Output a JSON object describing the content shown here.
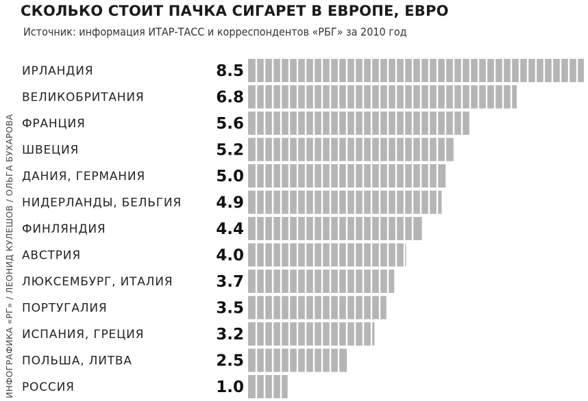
{
  "title": "СКОЛЬКО СТОИТ ПАЧКА СИГАРЕТ В ЕВРОПЕ, ЕВРО",
  "subtitle": "Источник: информация ИТАР-ТАСС и корреспондентов «РБГ» за 2010 год",
  "credit": "ИНФОГРАФИКА «РГ» / ЛЕОНИД КУЛЕШОВ / ОЛЬГА БУХАРОВА",
  "colors": {
    "bar": "#b5b5b5",
    "separator": "#ffffff",
    "text": "#1a1a1a"
  },
  "chart_data": {
    "type": "bar",
    "orientation": "horizontal",
    "categories": [
      "ИРЛАНДИЯ",
      "ВЕЛИКОБРИТАНИЯ",
      "ФРАНЦИЯ",
      "ШВЕЦИЯ",
      "ДАНИЯ, ГЕРМАНИЯ",
      "НИДЕРЛАНДЫ, БЕЛЬГИЯ",
      "ФИНЛЯНДИЯ",
      "АВСТРИЯ",
      "ЛЮКСЕМБУРГ, ИТАЛИЯ",
      "ПОРТУГАЛИЯ",
      "ИСПАНИЯ, ГРЕЦИЯ",
      "ПОЛЬША, ЛИТВА",
      "РОССИЯ"
    ],
    "values": [
      8.5,
      6.8,
      5.6,
      5.2,
      5.0,
      4.9,
      4.4,
      4.0,
      3.7,
      3.5,
      3.2,
      2.5,
      1.0
    ],
    "value_labels": [
      "8.5",
      "6.8",
      "5.6",
      "5.2",
      "5.0",
      "4.9",
      "4.4",
      "4.0",
      "3.7",
      "3.5",
      "3.2",
      "2.5",
      "1.0"
    ],
    "title": "СКОЛЬКО СТОИТ ПАЧКА СИГАРЕТ В ЕВРОПЕ, ЕВРО",
    "subtitle": "Источник: информация ИТАР-ТАСС и корреспондентов «РБГ» за 2010 год",
    "xlim": [
      0,
      8.5
    ],
    "grid": false,
    "legend": "none"
  }
}
